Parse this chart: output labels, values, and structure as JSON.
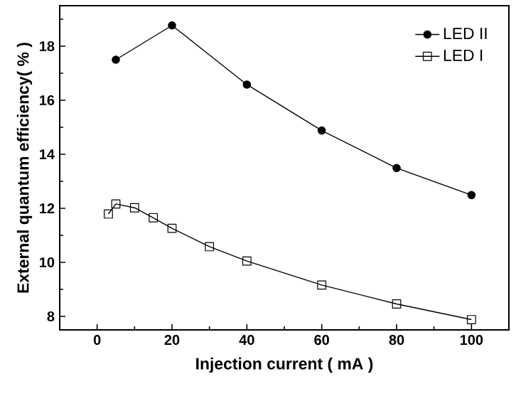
{
  "chart_data": {
    "type": "line",
    "xlabel": "Injection current ( mA )",
    "ylabel": "External quantum efficiency( % )",
    "xlim": [
      -10,
      110
    ],
    "ylim": [
      7.5,
      19.5
    ],
    "xticks": [
      0,
      {
        "value": 10,
        "label": null
      },
      20,
      {
        "value": 30,
        "label": null
      },
      40,
      {
        "value": 50,
        "label": null
      },
      60,
      {
        "value": 70,
        "label": null
      },
      80,
      {
        "value": 90,
        "label": null
      },
      100
    ],
    "yticks": [
      8,
      {
        "value": 9,
        "label": null
      },
      10,
      {
        "value": 11,
        "label": null
      },
      12,
      {
        "value": 13,
        "label": null
      },
      14,
      {
        "value": 15,
        "label": null
      },
      16,
      {
        "value": 17,
        "label": null
      },
      18,
      {
        "value": 19,
        "label": null
      }
    ],
    "legend": "top right",
    "series": [
      {
        "name": "LED II",
        "color": "#000000",
        "marker": "circle",
        "x": [
          5,
          20,
          40,
          60,
          80,
          100
        ],
        "values": [
          17.5,
          18.77,
          16.58,
          14.88,
          13.49,
          12.49
        ]
      },
      {
        "name": "LED I",
        "color": "#000000",
        "marker": "square",
        "x": [
          3,
          5,
          10,
          15,
          20,
          30,
          40,
          60,
          80,
          100
        ],
        "values": [
          11.79,
          12.16,
          12.02,
          11.65,
          11.26,
          10.58,
          10.05,
          9.16,
          8.46,
          7.88
        ]
      }
    ]
  }
}
